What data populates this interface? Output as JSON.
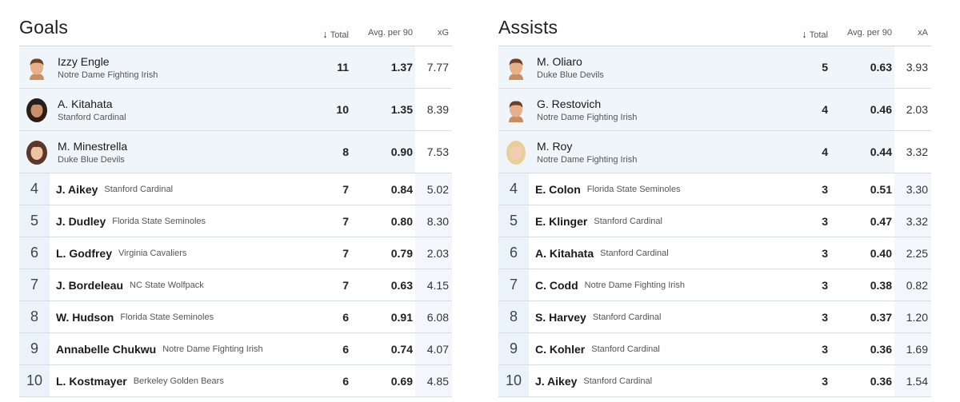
{
  "goals": {
    "title": "Goals",
    "sort_arrow": "↓",
    "col_total": "Total",
    "col_avg": "Avg. per 90",
    "col_x": "xG",
    "top": [
      {
        "name": "Izzy Engle",
        "team": "Notre Dame Fighting Irish",
        "total": "11",
        "avg": "1.37",
        "x": "7.77"
      },
      {
        "name": "A. Kitahata",
        "team": "Stanford Cardinal",
        "total": "10",
        "avg": "1.35",
        "x": "8.39"
      },
      {
        "name": "M. Minestrella",
        "team": "Duke Blue Devils",
        "total": "8",
        "avg": "0.90",
        "x": "7.53"
      }
    ],
    "rows": [
      {
        "rank": "4",
        "name": "J. Aikey",
        "team": "Stanford Cardinal",
        "total": "7",
        "avg": "0.84",
        "x": "5.02"
      },
      {
        "rank": "5",
        "name": "J. Dudley",
        "team": "Florida State Seminoles",
        "total": "7",
        "avg": "0.80",
        "x": "8.30"
      },
      {
        "rank": "6",
        "name": "L. Godfrey",
        "team": "Virginia Cavaliers",
        "total": "7",
        "avg": "0.79",
        "x": "2.03"
      },
      {
        "rank": "7",
        "name": "J. Bordeleau",
        "team": "NC State Wolfpack",
        "total": "7",
        "avg": "0.63",
        "x": "4.15"
      },
      {
        "rank": "8",
        "name": "W. Hudson",
        "team": "Florida State Seminoles",
        "total": "6",
        "avg": "0.91",
        "x": "6.08"
      },
      {
        "rank": "9",
        "name": "Annabelle Chukwu",
        "team": "Notre Dame Fighting Irish",
        "total": "6",
        "avg": "0.74",
        "x": "4.07"
      },
      {
        "rank": "10",
        "name": "L. Kostmayer",
        "team": "Berkeley Golden Bears",
        "total": "6",
        "avg": "0.69",
        "x": "4.85"
      }
    ]
  },
  "assists": {
    "title": "Assists",
    "sort_arrow": "↓",
    "col_total": "Total",
    "col_avg": "Avg. per 90",
    "col_x": "xA",
    "top": [
      {
        "name": "M. Oliaro",
        "team": "Duke Blue Devils",
        "total": "5",
        "avg": "0.63",
        "x": "3.93"
      },
      {
        "name": "G. Restovich",
        "team": "Notre Dame Fighting Irish",
        "total": "4",
        "avg": "0.46",
        "x": "2.03"
      },
      {
        "name": "M. Roy",
        "team": "Notre Dame Fighting Irish",
        "total": "4",
        "avg": "0.44",
        "x": "3.32"
      }
    ],
    "rows": [
      {
        "rank": "4",
        "name": "E. Colon",
        "team": "Florida State Seminoles",
        "total": "3",
        "avg": "0.51",
        "x": "3.30"
      },
      {
        "rank": "5",
        "name": "E. Klinger",
        "team": "Stanford Cardinal",
        "total": "3",
        "avg": "0.47",
        "x": "3.32"
      },
      {
        "rank": "6",
        "name": "A. Kitahata",
        "team": "Stanford Cardinal",
        "total": "3",
        "avg": "0.40",
        "x": "2.25"
      },
      {
        "rank": "7",
        "name": "C. Codd",
        "team": "Notre Dame Fighting Irish",
        "total": "3",
        "avg": "0.38",
        "x": "0.82"
      },
      {
        "rank": "8",
        "name": "S. Harvey",
        "team": "Stanford Cardinal",
        "total": "3",
        "avg": "0.37",
        "x": "1.20"
      },
      {
        "rank": "9",
        "name": "C. Kohler",
        "team": "Stanford Cardinal",
        "total": "3",
        "avg": "0.36",
        "x": "1.69"
      },
      {
        "rank": "10",
        "name": "J. Aikey",
        "team": "Stanford Cardinal",
        "total": "3",
        "avg": "0.36",
        "x": "1.54"
      }
    ]
  },
  "avatars": {
    "goals": [
      "avatar-male-short-hair",
      "avatar-female-long-dark-hair",
      "avatar-female-long-brown-hair"
    ],
    "assists": [
      "avatar-male-short-hair",
      "avatar-male-short-hair",
      "avatar-female-blonde-hair"
    ]
  },
  "colors": {
    "top_row_bg": "#f0f5fa",
    "rank_cell_bg": "#eaf2fa",
    "divider": "#d7dde3"
  }
}
